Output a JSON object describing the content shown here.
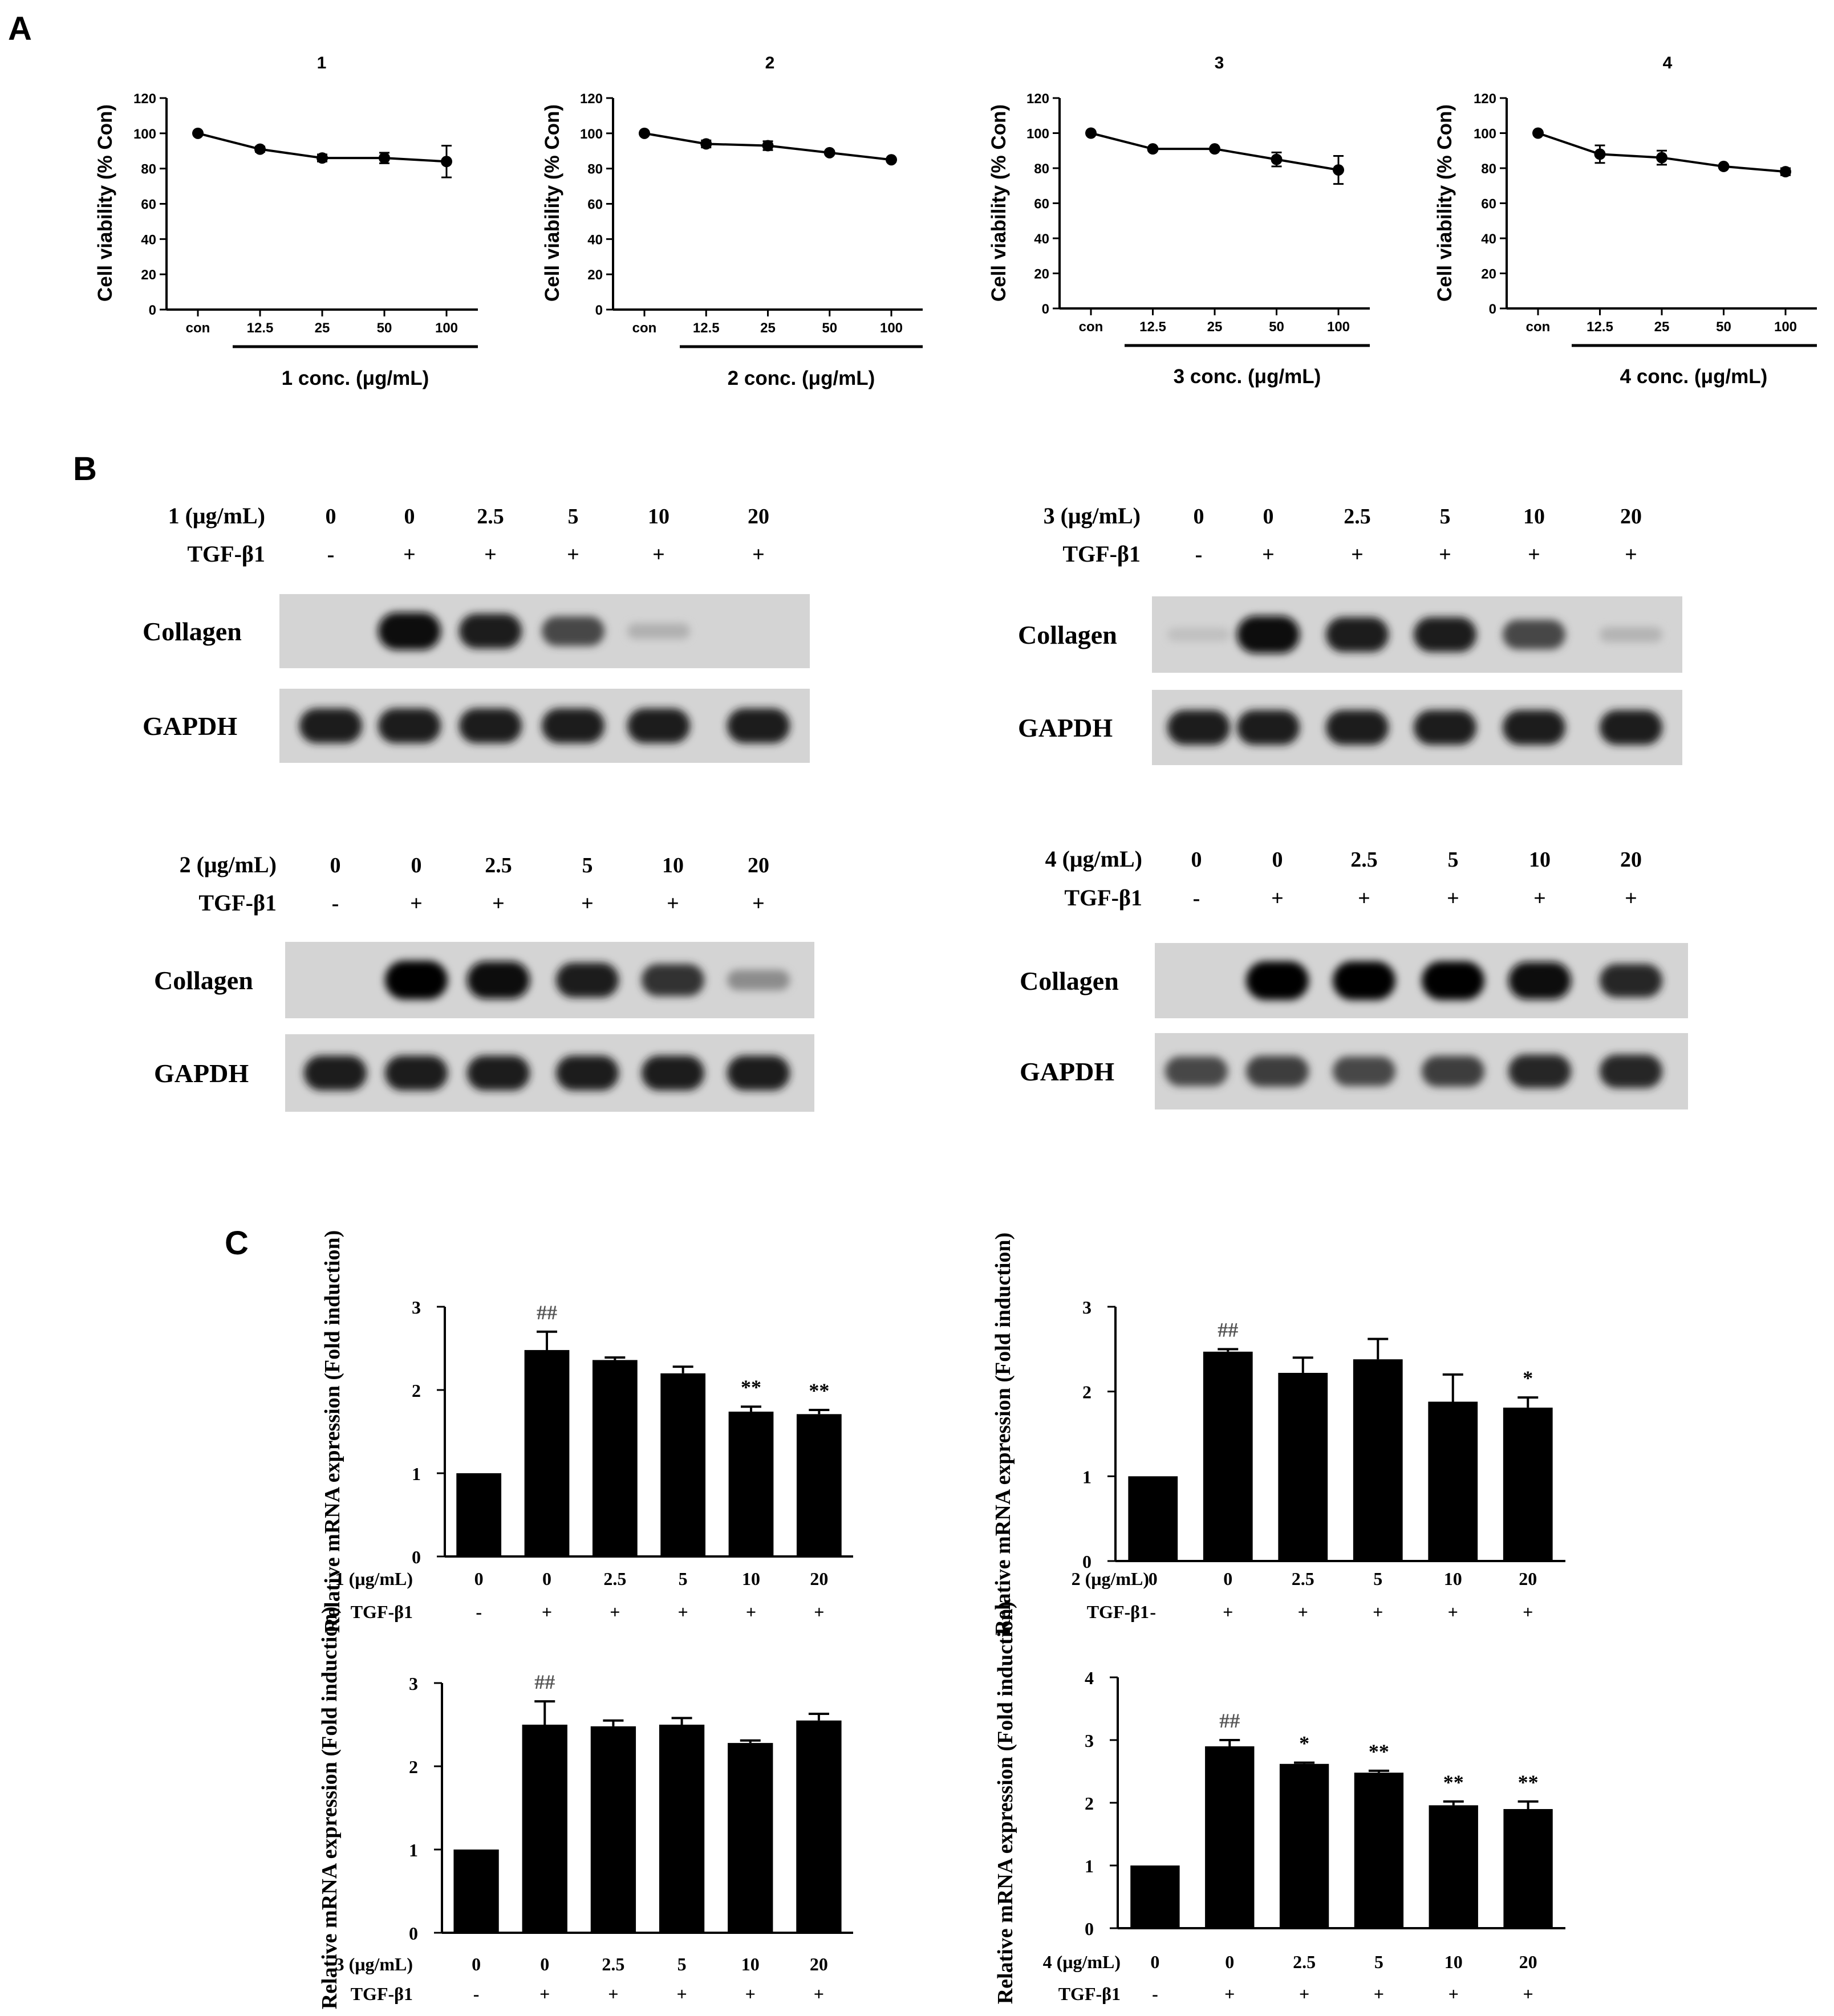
{
  "panel_letters": [
    "A",
    "B",
    "C"
  ],
  "chart_data": [
    {
      "type": "line",
      "panel": "A",
      "title": "1",
      "ylabel": "Cell viability (% Con)",
      "xlabel": "1 conc. (μg/mL)",
      "categories": [
        "con",
        "12.5",
        "25",
        "50",
        "100"
      ],
      "values": [
        100,
        91,
        86,
        86,
        84
      ],
      "errors": [
        1,
        1.5,
        2,
        3,
        9
      ],
      "ylim": [
        0,
        120
      ],
      "yticks": [
        0,
        20,
        40,
        60,
        80,
        100,
        120
      ]
    },
    {
      "type": "line",
      "panel": "A",
      "title": "2",
      "ylabel": "Cell viability (% Con)",
      "xlabel": "2 conc. (μg/mL)",
      "categories": [
        "con",
        "12.5",
        "25",
        "50",
        "100"
      ],
      "values": [
        100,
        94,
        93,
        89,
        85
      ],
      "errors": [
        1,
        2,
        2.5,
        1,
        1
      ],
      "ylim": [
        0,
        120
      ],
      "yticks": [
        0,
        20,
        40,
        60,
        80,
        100,
        120
      ]
    },
    {
      "type": "line",
      "panel": "A",
      "title": "3",
      "ylabel": "Cell viability (% Con)",
      "xlabel": "3 conc. (μg/mL)",
      "categories": [
        "con",
        "12.5",
        "25",
        "50",
        "100"
      ],
      "values": [
        100,
        91,
        91,
        85,
        79
      ],
      "errors": [
        1,
        1,
        1,
        4,
        8
      ],
      "ylim": [
        0,
        120
      ],
      "yticks": [
        0,
        20,
        40,
        60,
        80,
        100,
        120
      ]
    },
    {
      "type": "line",
      "panel": "A",
      "title": "4",
      "ylabel": "Cell viability (% Con)",
      "xlabel": "4 conc. (μg/mL)",
      "categories": [
        "con",
        "12.5",
        "25",
        "50",
        "100"
      ],
      "values": [
        100,
        88,
        86,
        81,
        78
      ],
      "errors": [
        1,
        5,
        4,
        1,
        2
      ],
      "ylim": [
        0,
        120
      ],
      "yticks": [
        0,
        20,
        40,
        60,
        80,
        100,
        120
      ]
    },
    {
      "type": "bar",
      "panel": "C",
      "ylabel": "Relative mRNA expression (Fold induction)",
      "row1_label": "1 (μg/mL)",
      "row1": [
        "0",
        "0",
        "2.5",
        "5",
        "10",
        "20"
      ],
      "row2_label": "TGF-β1",
      "row2": [
        "-",
        "+",
        "+",
        "+",
        "+",
        "+"
      ],
      "values": [
        1.0,
        2.48,
        2.36,
        2.2,
        1.74,
        1.71
      ],
      "errors": [
        0,
        0.22,
        0.03,
        0.08,
        0.06,
        0.05
      ],
      "annotations": [
        "",
        "##",
        "",
        "",
        "**",
        "**"
      ],
      "ylim": [
        0,
        3
      ],
      "yticks": [
        0,
        1,
        2,
        3
      ]
    },
    {
      "type": "bar",
      "panel": "C",
      "ylabel": "Relative mRNA expression (Fold induction)",
      "row1_label": "2 (μg/mL)",
      "row1": [
        "0",
        "0",
        "2.5",
        "5",
        "10",
        "20"
      ],
      "row2_label": "TGF-β1",
      "row2": [
        "-",
        "+",
        "+",
        "+",
        "+",
        "+"
      ],
      "values": [
        1.0,
        2.47,
        2.22,
        2.38,
        1.88,
        1.81
      ],
      "errors": [
        0,
        0.03,
        0.18,
        0.24,
        0.32,
        0.12
      ],
      "annotations": [
        "",
        "##",
        "",
        "",
        "",
        "*"
      ],
      "ylim": [
        0,
        3
      ],
      "yticks": [
        0,
        1,
        2,
        3
      ]
    },
    {
      "type": "bar",
      "panel": "C",
      "ylabel": "Relative mRNA expression (Fold induction)",
      "row1_label": "3 (μg/mL)",
      "row1": [
        "0",
        "0",
        "2.5",
        "5",
        "10",
        "20"
      ],
      "row2_label": "TGF-β1",
      "row2": [
        "-",
        "+",
        "+",
        "+",
        "+",
        "+"
      ],
      "values": [
        1.0,
        2.5,
        2.48,
        2.5,
        2.28,
        2.55
      ],
      "errors": [
        0,
        0.28,
        0.07,
        0.08,
        0.03,
        0.08
      ],
      "annotations": [
        "",
        "##",
        "",
        "",
        "",
        ""
      ],
      "ylim": [
        0,
        3
      ],
      "yticks": [
        0,
        1,
        2,
        3
      ]
    },
    {
      "type": "bar",
      "panel": "C",
      "ylabel": "Relative mRNA expression (Fold induction)",
      "row1_label": "4 (μg/mL)",
      "row1": [
        "0",
        "0",
        "2.5",
        "5",
        "10",
        "20"
      ],
      "row2_label": "TGF-β1",
      "row2": [
        "-",
        "+",
        "+",
        "+",
        "+",
        "+"
      ],
      "values": [
        1.0,
        2.9,
        2.62,
        2.48,
        1.96,
        1.9
      ],
      "errors": [
        0,
        0.1,
        0.02,
        0.03,
        0.06,
        0.12
      ],
      "annotations": [
        "",
        "##",
        "*",
        "**",
        "**",
        "**"
      ],
      "ylim": [
        0,
        4
      ],
      "yticks": [
        0,
        1,
        2,
        3,
        4
      ]
    }
  ],
  "blots": [
    {
      "compound_label": "1 (μg/mL)",
      "doses": [
        "0",
        "0",
        "2.5",
        "5",
        "10",
        "20"
      ],
      "tgf_label": "TGF-β1",
      "tgf": [
        "-",
        "+",
        "+",
        "+",
        "+",
        "+"
      ],
      "proteins": [
        {
          "name": "Collagen",
          "intensities": [
            0,
            0.95,
            0.85,
            0.65,
            0.12,
            0
          ]
        },
        {
          "name": "GAPDH",
          "intensities": [
            0.85,
            0.85,
            0.85,
            0.85,
            0.85,
            0.85
          ]
        }
      ]
    },
    {
      "compound_label": "3 (μg/mL)",
      "doses": [
        "0",
        "0",
        "2.5",
        "5",
        "10",
        "20"
      ],
      "tgf_label": "TGF-β1",
      "tgf": [
        "-",
        "+",
        "+",
        "+",
        "+",
        "+"
      ],
      "proteins": [
        {
          "name": "Collagen",
          "intensities": [
            0.04,
            0.95,
            0.85,
            0.85,
            0.65,
            0.1
          ]
        },
        {
          "name": "GAPDH",
          "intensities": [
            0.85,
            0.85,
            0.85,
            0.85,
            0.85,
            0.85
          ]
        }
      ]
    },
    {
      "compound_label": "2 (μg/mL)",
      "doses": [
        "0",
        "0",
        "2.5",
        "5",
        "10",
        "20"
      ],
      "tgf_label": "TGF-β1",
      "tgf": [
        "-",
        "+",
        "+",
        "+",
        "+",
        "+"
      ],
      "proteins": [
        {
          "name": "Collagen",
          "intensities": [
            0,
            1.0,
            0.95,
            0.85,
            0.75,
            0.3
          ]
        },
        {
          "name": "GAPDH",
          "intensities": [
            0.85,
            0.85,
            0.85,
            0.85,
            0.85,
            0.85
          ]
        }
      ]
    },
    {
      "compound_label": "4 (μg/mL)",
      "doses": [
        "0",
        "0",
        "2.5",
        "5",
        "10",
        "20"
      ],
      "tgf_label": "TGF-β1",
      "tgf": [
        "-",
        "+",
        "+",
        "+",
        "+",
        "+"
      ],
      "proteins": [
        {
          "name": "Collagen",
          "intensities": [
            0,
            1.0,
            1.0,
            1.0,
            0.95,
            0.8
          ]
        },
        {
          "name": "GAPDH",
          "intensities": [
            0.65,
            0.7,
            0.65,
            0.7,
            0.8,
            0.8
          ]
        }
      ]
    }
  ]
}
